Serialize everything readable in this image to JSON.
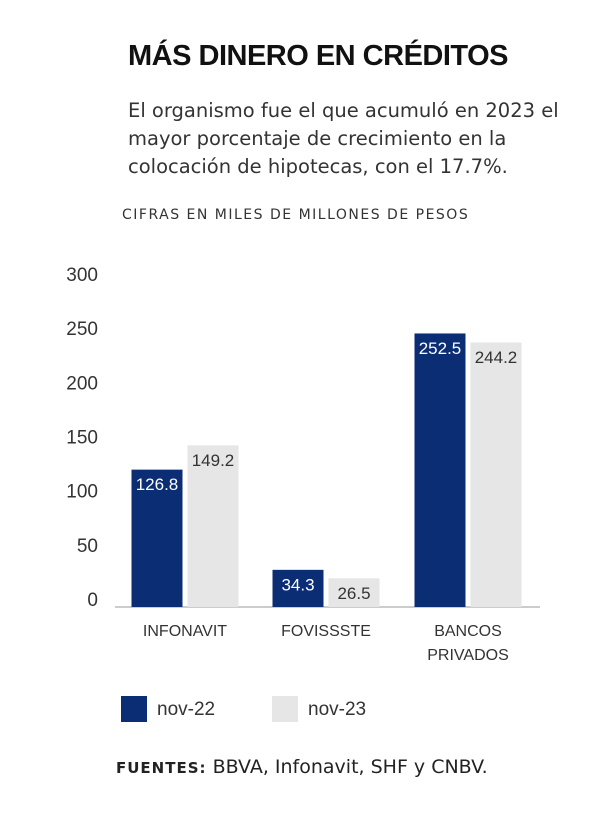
{
  "chart_data": {
    "type": "bar",
    "title": "MÁS DINERO EN CRÉDITOS",
    "subtitle": "El organismo fue el que acumuló en 2023 el mayor porcentaje de crecimiento en la colocación de hipotecas, con el 17.7%.",
    "y_label": "CIFRAS EN MILES DE MILLONES DE PESOS",
    "categories": [
      "INFONAVIT",
      "FOVISSSTE",
      "BANCOS PRIVADOS"
    ],
    "series": [
      {
        "name": "nov-22",
        "color": "#0b2d74",
        "values": [
          126.8,
          34.3,
          252.5
        ]
      },
      {
        "name": "nov-23",
        "color": "#e6e6e6",
        "values": [
          149.2,
          26.5,
          244.2
        ]
      }
    ],
    "ylim": [
      0,
      300
    ],
    "yticks": [
      0,
      50,
      100,
      150,
      200,
      250,
      300
    ],
    "grid": false,
    "source_label": "FUENTES:",
    "source": "BBVA, Infonavit, SHF y CNBV."
  }
}
